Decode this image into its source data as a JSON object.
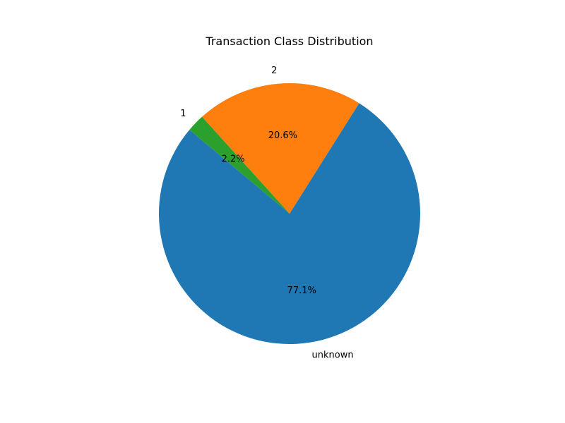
{
  "chart_data": {
    "type": "pie",
    "title": "Transaction Class Distribution",
    "labels": [
      "unknown",
      "2",
      "1"
    ],
    "values": [
      77.1,
      20.6,
      2.2
    ],
    "percent_labels": [
      "77.1%",
      "20.6%",
      "2.2%"
    ],
    "colors": [
      "#1f77b4",
      "#ff7f0e",
      "#2ca02c"
    ],
    "start_angle_deg": 140,
    "direction": "counterclockwise",
    "legend": "none"
  }
}
